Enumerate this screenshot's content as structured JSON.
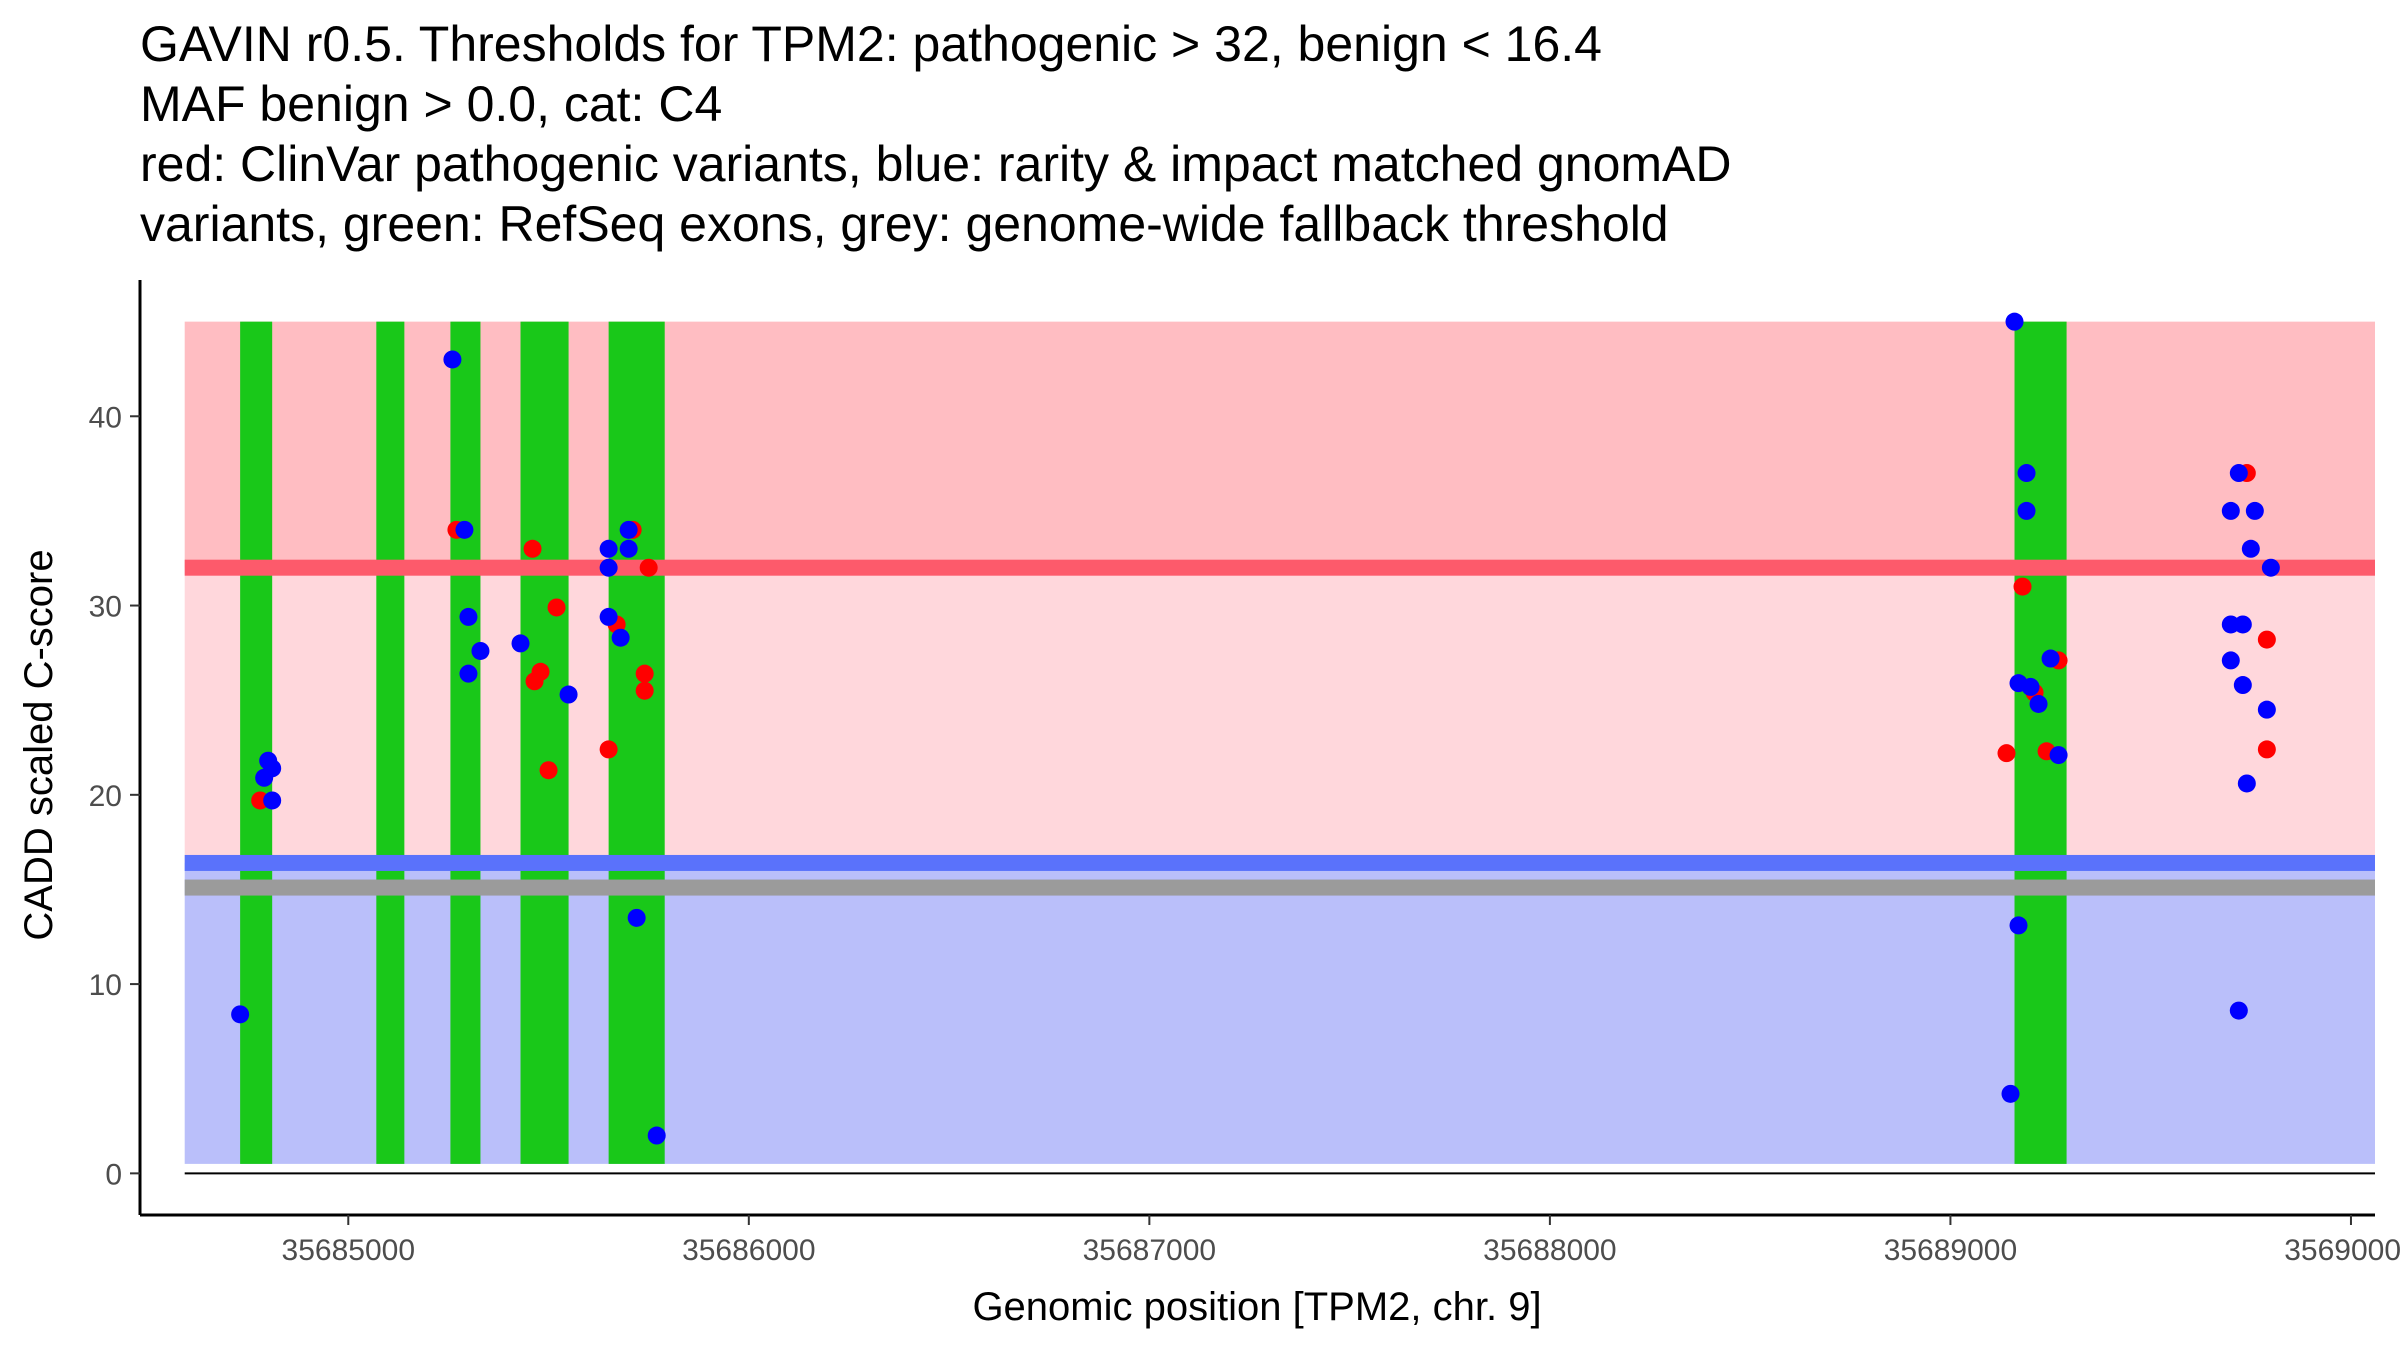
{
  "chart_data": {
    "type": "scatter",
    "title_lines": [
      "GAVIN r0.5. Thresholds for TPM2: pathogenic > 32, benign < 16.4",
      "MAF benign > 0.0, cat: C4",
      "red: ClinVar pathogenic variants, blue: rarity & impact matched gnomAD",
      "variants, green: RefSeq exons, grey: genome-wide fallback threshold"
    ],
    "xlabel": "Genomic position [TPM2, chr. 9]",
    "ylabel": "CADD scaled C-score",
    "xlim": [
      35684480,
      35690060
    ],
    "ylim": [
      -2.2,
      47.2
    ],
    "x_ticks": [
      {
        "value": 35685000,
        "label": "35685000"
      },
      {
        "value": 35686000,
        "label": "35686000"
      },
      {
        "value": 35687000,
        "label": "35687000"
      },
      {
        "value": 35688000,
        "label": "35688000"
      },
      {
        "value": 35689000,
        "label": "35689000"
      },
      {
        "value": 35690000,
        "label": "35690000"
      }
    ],
    "y_ticks": [
      {
        "value": 0,
        "label": "0"
      },
      {
        "value": 10,
        "label": "10"
      },
      {
        "value": 20,
        "label": "20"
      },
      {
        "value": 30,
        "label": "30"
      },
      {
        "value": 40,
        "label": "40"
      }
    ],
    "thresholds": {
      "pathogenic": 32,
      "benign": 16.4,
      "fallback": 15.1
    },
    "regions": [
      {
        "name": "pathogenic-region",
        "y0": 32,
        "y1": 45,
        "color": "#ffbdc2"
      },
      {
        "name": "intermediate-region",
        "y0": 16.4,
        "y1": 32,
        "color": "#ffd7dc"
      },
      {
        "name": "benign-region",
        "y0": 0.5,
        "y1": 16.4,
        "color": "#babffa"
      }
    ],
    "threshold_lines": [
      {
        "name": "pathogenic-threshold-line",
        "y": 32,
        "color": "#fd5a6b"
      },
      {
        "name": "benign-threshold-line",
        "y": 16.4,
        "color": "#5a72fb"
      },
      {
        "name": "fallback-threshold-line",
        "y": 15.1,
        "color": "#9b9b9b"
      }
    ],
    "exons": [
      {
        "start": 35684730,
        "end": 35684810
      },
      {
        "start": 35685070,
        "end": 35685140
      },
      {
        "start": 35685255,
        "end": 35685330
      },
      {
        "start": 35685430,
        "end": 35685550
      },
      {
        "start": 35685650,
        "end": 35685790
      },
      {
        "start": 35689160,
        "end": 35689290
      }
    ],
    "exon_range": [
      0.5,
      45
    ],
    "series": [
      {
        "name": "ClinVar pathogenic variants",
        "color": "#ff0000",
        "points": [
          {
            "x": 35684780,
            "y": 19.7
          },
          {
            "x": 35685270,
            "y": 34
          },
          {
            "x": 35685460,
            "y": 33
          },
          {
            "x": 35685465,
            "y": 26
          },
          {
            "x": 35685480,
            "y": 26.5
          },
          {
            "x": 35685500,
            "y": 21.3
          },
          {
            "x": 35685520,
            "y": 29.9
          },
          {
            "x": 35685650,
            "y": 22.4
          },
          {
            "x": 35685670,
            "y": 29
          },
          {
            "x": 35685710,
            "y": 34
          },
          {
            "x": 35685740,
            "y": 26.4
          },
          {
            "x": 35685740,
            "y": 25.5
          },
          {
            "x": 35685750,
            "y": 32
          },
          {
            "x": 35689140,
            "y": 22.2
          },
          {
            "x": 35689180,
            "y": 31
          },
          {
            "x": 35689210,
            "y": 25.4
          },
          {
            "x": 35689240,
            "y": 22.3
          },
          {
            "x": 35689270,
            "y": 27.1
          },
          {
            "x": 35689740,
            "y": 37
          },
          {
            "x": 35689790,
            "y": 28.2
          },
          {
            "x": 35689790,
            "y": 22.4
          }
        ]
      },
      {
        "name": "rarity & impact matched gnomAD variants",
        "color": "#0000ff",
        "points": [
          {
            "x": 35684730,
            "y": 8.4
          },
          {
            "x": 35684790,
            "y": 20.9
          },
          {
            "x": 35684800,
            "y": 21.8
          },
          {
            "x": 35684810,
            "y": 21.4
          },
          {
            "x": 35684810,
            "y": 19.7
          },
          {
            "x": 35685260,
            "y": 43
          },
          {
            "x": 35685290,
            "y": 34
          },
          {
            "x": 35685300,
            "y": 29.4
          },
          {
            "x": 35685300,
            "y": 26.4
          },
          {
            "x": 35685330,
            "y": 27.6
          },
          {
            "x": 35685430,
            "y": 28
          },
          {
            "x": 35685550,
            "y": 25.3
          },
          {
            "x": 35685650,
            "y": 33
          },
          {
            "x": 35685650,
            "y": 32
          },
          {
            "x": 35685650,
            "y": 29.4
          },
          {
            "x": 35685680,
            "y": 28.3
          },
          {
            "x": 35685700,
            "y": 33
          },
          {
            "x": 35685700,
            "y": 34
          },
          {
            "x": 35685720,
            "y": 13.5
          },
          {
            "x": 35685770,
            "y": 2
          },
          {
            "x": 35689150,
            "y": 4.2
          },
          {
            "x": 35689160,
            "y": 45
          },
          {
            "x": 35689170,
            "y": 25.9
          },
          {
            "x": 35689170,
            "y": 13.1
          },
          {
            "x": 35689190,
            "y": 37
          },
          {
            "x": 35689190,
            "y": 35
          },
          {
            "x": 35689200,
            "y": 25.7
          },
          {
            "x": 35689220,
            "y": 24.8
          },
          {
            "x": 35689250,
            "y": 27.2
          },
          {
            "x": 35689270,
            "y": 22.1
          },
          {
            "x": 35689700,
            "y": 35
          },
          {
            "x": 35689700,
            "y": 29
          },
          {
            "x": 35689700,
            "y": 27.1
          },
          {
            "x": 35689720,
            "y": 37
          },
          {
            "x": 35689720,
            "y": 8.6
          },
          {
            "x": 35689730,
            "y": 29
          },
          {
            "x": 35689730,
            "y": 25.8
          },
          {
            "x": 35689740,
            "y": 20.6
          },
          {
            "x": 35689750,
            "y": 33
          },
          {
            "x": 35689760,
            "y": 35
          },
          {
            "x": 35689790,
            "y": 24.5
          },
          {
            "x": 35689800,
            "y": 32
          }
        ]
      }
    ],
    "exon_color": "#19c819",
    "grid": false,
    "legend": "none"
  }
}
